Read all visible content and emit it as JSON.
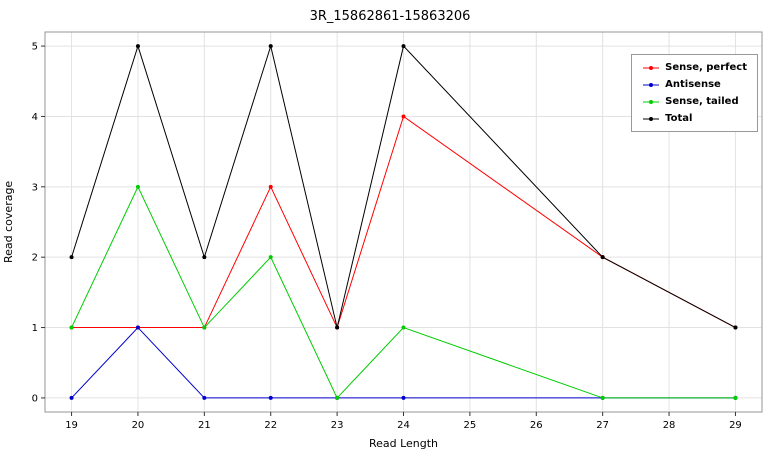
{
  "chart_data": {
    "type": "line",
    "title": "3R_15862861-15863206",
    "xlabel": "Read Length",
    "ylabel": "Read coverage",
    "x": [
      19,
      20,
      21,
      22,
      23,
      24,
      27,
      29
    ],
    "xticks": [
      19,
      20,
      21,
      22,
      23,
      24,
      25,
      26,
      27,
      28,
      29
    ],
    "yticks": [
      0,
      1,
      2,
      3,
      4,
      5
    ],
    "xlim": [
      18.6,
      29.4
    ],
    "ylim": [
      -0.2,
      5.2
    ],
    "grid": true,
    "legend_position": "top-right",
    "series": [
      {
        "name": "Sense, perfect",
        "color": "#ff0000",
        "values": [
          1,
          1,
          1,
          3,
          1,
          4,
          2,
          1
        ]
      },
      {
        "name": "Antisense",
        "color": "#0000cd",
        "values": [
          0,
          1,
          0,
          0,
          0,
          0,
          0,
          0
        ]
      },
      {
        "name": "Sense, tailed",
        "color": "#00cc00",
        "values": [
          1,
          3,
          1,
          2,
          0,
          1,
          0,
          0
        ]
      },
      {
        "name": "Total",
        "color": "#000000",
        "values": [
          2,
          5,
          2,
          5,
          1,
          5,
          2,
          1
        ]
      }
    ],
    "styles": {
      "grid_color": "#e2e2e2",
      "border_color": "#969696",
      "tick_color": "#333333",
      "point_radius": 2,
      "line_width": 1
    }
  }
}
